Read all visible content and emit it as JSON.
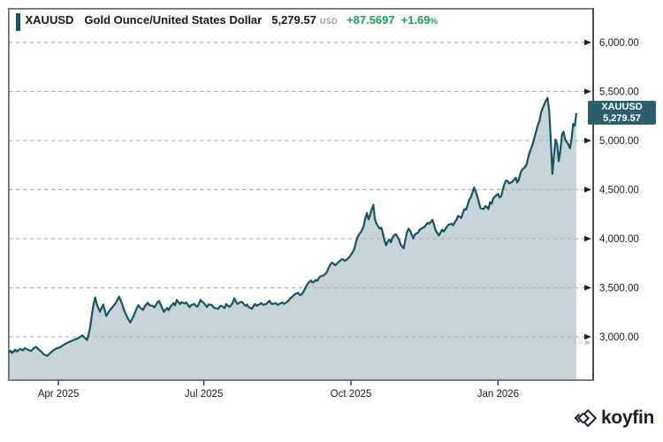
{
  "header": {
    "symbol": "XAUUSD",
    "name": "Gold Ounce/United States Dollar",
    "price": "5,279.57",
    "currency": "USD",
    "change": "+87.5697",
    "change_pct": "+1.69",
    "pct_symbol": "%",
    "accent_color": "#175463",
    "change_color": "#14a45c"
  },
  "price_badge": {
    "symbol": "XAUUSD",
    "price": "5,279.57",
    "bg_color": "#2d5e6b"
  },
  "misc": {
    "faint_label": "0.0"
  },
  "logo": {
    "text": "koyfin"
  },
  "chart_data": {
    "type": "area",
    "title": "XAUUSD Gold Ounce/United States Dollar",
    "last_price": 5279.57,
    "x_axis": {
      "start_date": "2025-03-01",
      "ticks": [
        {
          "label": "Apr 2025",
          "day": 31
        },
        {
          "label": "Jul 2025",
          "day": 122
        },
        {
          "label": "Oct 2025",
          "day": 214
        },
        {
          "label": "Jan 2026",
          "day": 306
        }
      ]
    },
    "y_axis": {
      "grid": "dashed",
      "ticks": [
        {
          "label": "6,000.00",
          "value": 6000
        },
        {
          "label": "5,500.00",
          "value": 5500
        },
        {
          "label": "5,000.00",
          "value": 5000
        },
        {
          "label": "4,500.00",
          "value": 4500
        },
        {
          "label": "4,000.00",
          "value": 4000
        },
        {
          "label": "3,500.00",
          "value": 3500
        },
        {
          "label": "3,000.00",
          "value": 3000
        }
      ]
    },
    "colors": {
      "line": "#175463",
      "fill": "#c7d4d9",
      "grid": "#b3b3b3"
    },
    "series": [
      {
        "name": "XAUUSD",
        "points": [
          [
            0,
            2842
          ],
          [
            1,
            2858
          ],
          [
            2,
            2836
          ],
          [
            4,
            2868
          ],
          [
            5,
            2850
          ],
          [
            7,
            2876
          ],
          [
            9,
            2862
          ],
          [
            10,
            2886
          ],
          [
            12,
            2868
          ],
          [
            14,
            2856
          ],
          [
            16,
            2890
          ],
          [
            17,
            2898
          ],
          [
            19,
            2866
          ],
          [
            20,
            2854
          ],
          [
            22,
            2820
          ],
          [
            24,
            2806
          ],
          [
            26,
            2836
          ],
          [
            28,
            2864
          ],
          [
            30,
            2884
          ],
          [
            32,
            2894
          ],
          [
            34,
            2914
          ],
          [
            36,
            2934
          ],
          [
            38,
            2950
          ],
          [
            41,
            2970
          ],
          [
            43,
            2984
          ],
          [
            44,
            2994
          ],
          [
            46,
            3014
          ],
          [
            47,
            2996
          ],
          [
            49,
            2968
          ],
          [
            50,
            3030
          ],
          [
            51,
            3110
          ],
          [
            52,
            3230
          ],
          [
            53,
            3330
          ],
          [
            54,
            3402
          ],
          [
            55,
            3332
          ],
          [
            57,
            3256
          ],
          [
            59,
            3330
          ],
          [
            61,
            3212
          ],
          [
            63,
            3268
          ],
          [
            65,
            3305
          ],
          [
            67,
            3348
          ],
          [
            69,
            3410
          ],
          [
            71,
            3330
          ],
          [
            72,
            3276
          ],
          [
            74,
            3202
          ],
          [
            76,
            3146
          ],
          [
            78,
            3212
          ],
          [
            80,
            3290
          ],
          [
            81,
            3322
          ],
          [
            82,
            3300
          ],
          [
            84,
            3274
          ],
          [
            85,
            3310
          ],
          [
            87,
            3348
          ],
          [
            88,
            3322
          ],
          [
            90,
            3314
          ],
          [
            91,
            3298
          ],
          [
            93,
            3352
          ],
          [
            94,
            3366
          ],
          [
            96,
            3290
          ],
          [
            97,
            3256
          ],
          [
            99,
            3294
          ],
          [
            100,
            3272
          ],
          [
            101,
            3305
          ],
          [
            103,
            3344
          ],
          [
            104,
            3320
          ],
          [
            105,
            3376
          ],
          [
            107,
            3334
          ],
          [
            108,
            3352
          ],
          [
            110,
            3340
          ],
          [
            111,
            3350
          ],
          [
            113,
            3304
          ],
          [
            114,
            3322
          ],
          [
            116,
            3336
          ],
          [
            117,
            3314
          ],
          [
            118,
            3308
          ],
          [
            120,
            3376
          ],
          [
            121,
            3356
          ],
          [
            122,
            3344
          ],
          [
            124,
            3304
          ],
          [
            125,
            3330
          ],
          [
            127,
            3324
          ],
          [
            128,
            3302
          ],
          [
            129,
            3294
          ],
          [
            131,
            3286
          ],
          [
            132,
            3310
          ],
          [
            133,
            3314
          ],
          [
            135,
            3294
          ],
          [
            136,
            3334
          ],
          [
            138,
            3304
          ],
          [
            139,
            3322
          ],
          [
            140,
            3344
          ],
          [
            141,
            3394
          ],
          [
            142,
            3360
          ],
          [
            143,
            3334
          ],
          [
            145,
            3356
          ],
          [
            146,
            3354
          ],
          [
            148,
            3314
          ],
          [
            149,
            3330
          ],
          [
            150,
            3304
          ],
          [
            152,
            3286
          ],
          [
            153,
            3312
          ],
          [
            154,
            3334
          ],
          [
            155,
            3316
          ],
          [
            156,
            3324
          ],
          [
            158,
            3344
          ],
          [
            159,
            3326
          ],
          [
            161,
            3334
          ],
          [
            162,
            3352
          ],
          [
            163,
            3368
          ],
          [
            164,
            3340
          ],
          [
            165,
            3334
          ],
          [
            167,
            3344
          ],
          [
            168,
            3326
          ],
          [
            169,
            3332
          ],
          [
            171,
            3350
          ],
          [
            172,
            3336
          ],
          [
            174,
            3354
          ],
          [
            175,
            3370
          ],
          [
            176,
            3394
          ],
          [
            177,
            3404
          ],
          [
            178,
            3420
          ],
          [
            179,
            3436
          ],
          [
            180,
            3442
          ],
          [
            181,
            3448
          ],
          [
            182,
            3426
          ],
          [
            183,
            3430
          ],
          [
            184,
            3452
          ],
          [
            185,
            3482
          ],
          [
            186,
            3516
          ],
          [
            187,
            3542
          ],
          [
            188,
            3560
          ],
          [
            189,
            3574
          ],
          [
            190,
            3552
          ],
          [
            191,
            3562
          ],
          [
            192,
            3580
          ],
          [
            193,
            3570
          ],
          [
            194,
            3602
          ],
          [
            195,
            3616
          ],
          [
            196,
            3622
          ],
          [
            197,
            3628
          ],
          [
            198,
            3642
          ],
          [
            199,
            3660
          ],
          [
            200,
            3702
          ],
          [
            201,
            3734
          ],
          [
            202,
            3756
          ],
          [
            203,
            3748
          ],
          [
            204,
            3730
          ],
          [
            205,
            3742
          ],
          [
            206,
            3758
          ],
          [
            207,
            3772
          ],
          [
            208,
            3786
          ],
          [
            209,
            3792
          ],
          [
            210,
            3776
          ],
          [
            211,
            3782
          ],
          [
            212,
            3796
          ],
          [
            213,
            3812
          ],
          [
            214,
            3836
          ],
          [
            215,
            3860
          ],
          [
            216,
            3892
          ],
          [
            217,
            3952
          ],
          [
            218,
            4012
          ],
          [
            219,
            4042
          ],
          [
            220,
            4062
          ],
          [
            221,
            4092
          ],
          [
            222,
            4132
          ],
          [
            223,
            4212
          ],
          [
            224,
            4262
          ],
          [
            225,
            4196
          ],
          [
            226,
            4240
          ],
          [
            227,
            4300
          ],
          [
            228,
            4345
          ],
          [
            229,
            4200
          ],
          [
            230,
            4152
          ],
          [
            232,
            4102
          ],
          [
            233,
            4112
          ],
          [
            234,
            4052
          ],
          [
            235,
            3982
          ],
          [
            236,
            3932
          ],
          [
            237,
            3972
          ],
          [
            238,
            3992
          ],
          [
            239,
            3962
          ],
          [
            240,
            4012
          ],
          [
            241,
            4032
          ],
          [
            242,
            4046
          ],
          [
            243,
            4022
          ],
          [
            244,
            3992
          ],
          [
            245,
            3942
          ],
          [
            247,
            3902
          ],
          [
            248,
            3988
          ],
          [
            249,
            4062
          ],
          [
            250,
            4102
          ],
          [
            251,
            4082
          ],
          [
            253,
            4002
          ],
          [
            254,
            4042
          ],
          [
            256,
            4062
          ],
          [
            257,
            4092
          ],
          [
            259,
            4112
          ],
          [
            260,
            4122
          ],
          [
            262,
            4162
          ],
          [
            263,
            4152
          ],
          [
            265,
            4192
          ],
          [
            266,
            4142
          ],
          [
            267,
            4082
          ],
          [
            269,
            4032
          ],
          [
            271,
            4092
          ],
          [
            272,
            4072
          ],
          [
            274,
            4122
          ],
          [
            275,
            4142
          ],
          [
            277,
            4152
          ],
          [
            278,
            4136
          ],
          [
            279,
            4172
          ],
          [
            280,
            4192
          ],
          [
            281,
            4232
          ],
          [
            283,
            4212
          ],
          [
            284,
            4262
          ],
          [
            285,
            4302
          ],
          [
            286,
            4296
          ],
          [
            287,
            4342
          ],
          [
            288,
            4396
          ],
          [
            289,
            4422
          ],
          [
            290,
            4472
          ],
          [
            291,
            4522
          ],
          [
            292,
            4482
          ],
          [
            293,
            4432
          ],
          [
            295,
            4312
          ],
          [
            296,
            4306
          ],
          [
            297,
            4302
          ],
          [
            298,
            4332
          ],
          [
            299,
            4322
          ],
          [
            300,
            4302
          ],
          [
            301,
            4372
          ],
          [
            302,
            4356
          ],
          [
            303,
            4412
          ],
          [
            305,
            4444
          ],
          [
            306,
            4456
          ],
          [
            307,
            4420
          ],
          [
            308,
            4432
          ],
          [
            309,
            4502
          ],
          [
            310,
            4556
          ],
          [
            311,
            4592
          ],
          [
            312,
            4588
          ],
          [
            313,
            4562
          ],
          [
            315,
            4582
          ],
          [
            316,
            4600
          ],
          [
            317,
            4622
          ],
          [
            318,
            4572
          ],
          [
            319,
            4602
          ],
          [
            320,
            4666
          ],
          [
            321,
            4702
          ],
          [
            322,
            4716
          ],
          [
            323,
            4732
          ],
          [
            324,
            4762
          ],
          [
            325,
            4836
          ],
          [
            326,
            4892
          ],
          [
            327,
            4932
          ],
          [
            328,
            4982
          ],
          [
            329,
            5046
          ],
          [
            330,
            5102
          ],
          [
            331,
            5160
          ],
          [
            332,
            5202
          ],
          [
            333,
            5292
          ],
          [
            334,
            5330
          ],
          [
            335,
            5372
          ],
          [
            336,
            5408
          ],
          [
            337,
            5435
          ],
          [
            338,
            5300
          ],
          [
            339,
            5000
          ],
          [
            340,
            4660
          ],
          [
            341,
            4850
          ],
          [
            342,
            5010
          ],
          [
            343,
            4960
          ],
          [
            344,
            4790
          ],
          [
            345,
            4900
          ],
          [
            346,
            5060
          ],
          [
            347,
            5090
          ],
          [
            348,
            5010
          ],
          [
            350,
            4960
          ],
          [
            351,
            4920
          ],
          [
            352,
            5020
          ],
          [
            353,
            5170
          ],
          [
            354,
            5150
          ],
          [
            355,
            5279.57
          ]
        ]
      }
    ]
  }
}
